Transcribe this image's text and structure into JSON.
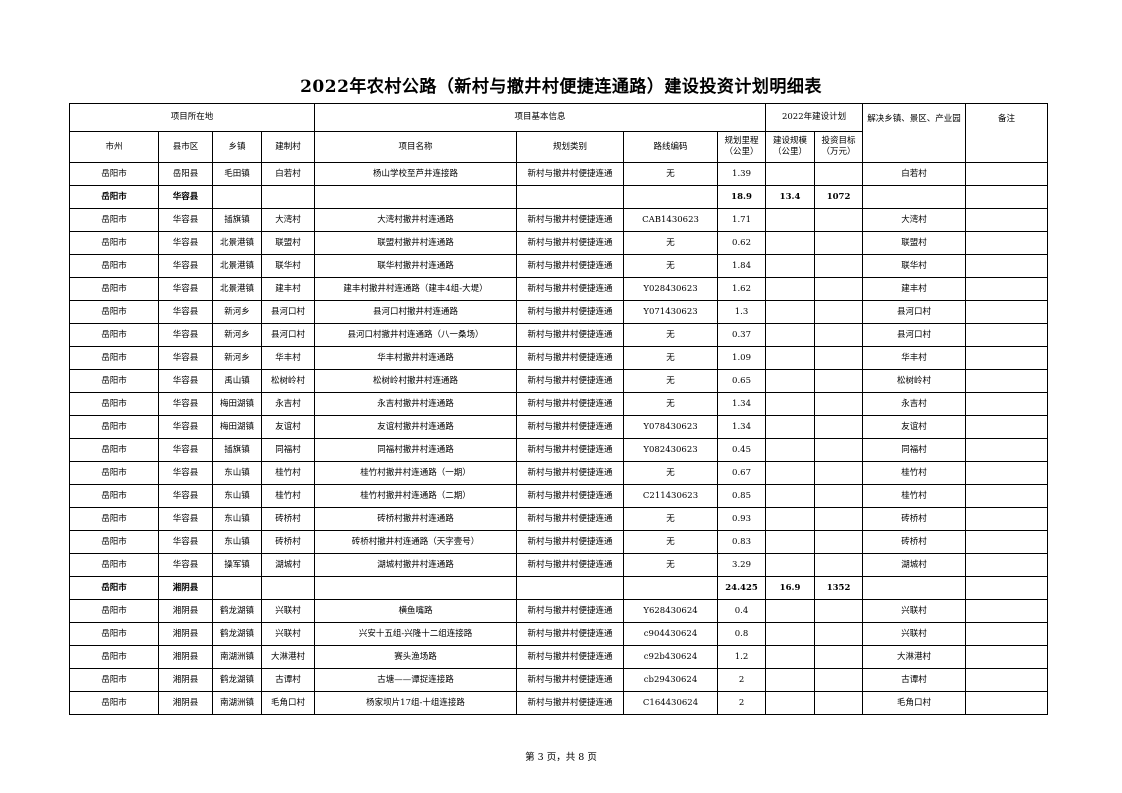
{
  "title": "2022年农村公路（新村与撤井村便捷连通路）建设投资计划明细表",
  "header": {
    "group_location": "项目所在地",
    "group_basic": "项目基本信息",
    "group_plan": "2022年建设计划",
    "resolve": "解决乡镇、景区、产业园",
    "remark": "备注",
    "columns": [
      "市州",
      "县市区",
      "乡镇",
      "建制村",
      "项目名称",
      "规划类别",
      "路线编码",
      "规划里程（公里）",
      "建设规模（公里）",
      "投资目标（万元）"
    ]
  },
  "rows": [
    {
      "type": "item",
      "c": [
        "岳阳市",
        "岳阳县",
        "毛田镇",
        "白若村",
        "杨山学校至芦井连接路",
        "新村与撤井村便捷连通",
        "无",
        "1.39",
        "",
        "",
        "白若村",
        ""
      ]
    },
    {
      "type": "subtotal",
      "c": [
        "岳阳市",
        "华容县",
        "",
        "",
        "",
        "",
        "",
        "18.9",
        "13.4",
        "1072",
        "",
        ""
      ]
    },
    {
      "type": "item",
      "c": [
        "岳阳市",
        "华容县",
        "插旗镇",
        "大湾村",
        "大湾村撤井村连通路",
        "新村与撤井村便捷连通",
        "CAB1430623",
        "1.71",
        "",
        "",
        "大湾村",
        ""
      ]
    },
    {
      "type": "item",
      "c": [
        "岳阳市",
        "华容县",
        "北景港镇",
        "联盟村",
        "联盟村撤井村连通路",
        "新村与撤井村便捷连通",
        "无",
        "0.62",
        "",
        "",
        "联盟村",
        ""
      ]
    },
    {
      "type": "item",
      "c": [
        "岳阳市",
        "华容县",
        "北景港镇",
        "联华村",
        "联华村撤井村连通路",
        "新村与撤井村便捷连通",
        "无",
        "1.84",
        "",
        "",
        "联华村",
        ""
      ]
    },
    {
      "type": "item",
      "c": [
        "岳阳市",
        "华容县",
        "北景港镇",
        "建丰村",
        "建丰村撤井村连通路（建丰4组-大堤）",
        "新村与撤井村便捷连通",
        "Y028430623",
        "1.62",
        "",
        "",
        "建丰村",
        ""
      ]
    },
    {
      "type": "item",
      "c": [
        "岳阳市",
        "华容县",
        "新河乡",
        "县河口村",
        "县河口村撤井村连通路",
        "新村与撤井村便捷连通",
        "Y071430623",
        "1.3",
        "",
        "",
        "县河口村",
        ""
      ]
    },
    {
      "type": "item",
      "c": [
        "岳阳市",
        "华容县",
        "新河乡",
        "县河口村",
        "县河口村撤井村连通路（八一桑场）",
        "新村与撤井村便捷连通",
        "无",
        "0.37",
        "",
        "",
        "县河口村",
        ""
      ]
    },
    {
      "type": "item",
      "c": [
        "岳阳市",
        "华容县",
        "新河乡",
        "华丰村",
        "华丰村撤井村连通路",
        "新村与撤井村便捷连通",
        "无",
        "1.09",
        "",
        "",
        "华丰村",
        ""
      ]
    },
    {
      "type": "item",
      "c": [
        "岳阳市",
        "华容县",
        "禹山镇",
        "松树岭村",
        "松树岭村撤井村连通路",
        "新村与撤井村便捷连通",
        "无",
        "0.65",
        "",
        "",
        "松树岭村",
        ""
      ]
    },
    {
      "type": "item",
      "c": [
        "岳阳市",
        "华容县",
        "梅田湖镇",
        "永吉村",
        "永吉村撤井村连通路",
        "新村与撤井村便捷连通",
        "无",
        "1.34",
        "",
        "",
        "永吉村",
        ""
      ]
    },
    {
      "type": "item",
      "c": [
        "岳阳市",
        "华容县",
        "梅田湖镇",
        "友谊村",
        "友谊村撤井村连通路",
        "新村与撤井村便捷连通",
        "Y078430623",
        "1.34",
        "",
        "",
        "友谊村",
        ""
      ]
    },
    {
      "type": "item",
      "c": [
        "岳阳市",
        "华容县",
        "插旗镇",
        "同福村",
        "同福村撤井村连通路",
        "新村与撤井村便捷连通",
        "Y082430623",
        "0.45",
        "",
        "",
        "同福村",
        ""
      ]
    },
    {
      "type": "item",
      "c": [
        "岳阳市",
        "华容县",
        "东山镇",
        "桂竹村",
        "桂竹村撤井村连通路（一期）",
        "新村与撤井村便捷连通",
        "无",
        "0.67",
        "",
        "",
        "桂竹村",
        ""
      ]
    },
    {
      "type": "item",
      "c": [
        "岳阳市",
        "华容县",
        "东山镇",
        "桂竹村",
        "桂竹村撤井村连通路（二期）",
        "新村与撤井村便捷连通",
        "C211430623",
        "0.85",
        "",
        "",
        "桂竹村",
        ""
      ]
    },
    {
      "type": "item",
      "c": [
        "岳阳市",
        "华容县",
        "东山镇",
        "砖桥村",
        "砖桥村撤井村连通路",
        "新村与撤井村便捷连通",
        "无",
        "0.93",
        "",
        "",
        "砖桥村",
        ""
      ]
    },
    {
      "type": "item",
      "c": [
        "岳阳市",
        "华容县",
        "东山镇",
        "砖桥村",
        "砖桥村撤井村连通路（天字壹号）",
        "新村与撤井村便捷连通",
        "无",
        "0.83",
        "",
        "",
        "砖桥村",
        ""
      ]
    },
    {
      "type": "item",
      "c": [
        "岳阳市",
        "华容县",
        "操军镇",
        "湖城村",
        "湖城村撤井村连通路",
        "新村与撤井村便捷连通",
        "无",
        "3.29",
        "",
        "",
        "湖城村",
        ""
      ]
    },
    {
      "type": "subtotal",
      "c": [
        "岳阳市",
        "湘阴县",
        "",
        "",
        "",
        "",
        "",
        "24.425",
        "16.9",
        "1352",
        "",
        ""
      ]
    },
    {
      "type": "item",
      "c": [
        "岳阳市",
        "湘阴县",
        "鹤龙湖镇",
        "兴联村",
        "横鱼嘴路",
        "新村与撤井村便捷连通",
        "Y628430624",
        "0.4",
        "",
        "",
        "兴联村",
        ""
      ]
    },
    {
      "type": "item",
      "c": [
        "岳阳市",
        "湘阴县",
        "鹤龙湖镇",
        "兴联村",
        "兴安十五组-兴隆十二组连接路",
        "新村与撤井村便捷连通",
        "c904430624",
        "0.8",
        "",
        "",
        "兴联村",
        ""
      ]
    },
    {
      "type": "item",
      "c": [
        "岳阳市",
        "湘阴县",
        "南湖洲镇",
        "大淋港村",
        "赛头渔场路",
        "新村与撤井村便捷连通",
        "c92b430624",
        "1.2",
        "",
        "",
        "大淋港村",
        ""
      ]
    },
    {
      "type": "item",
      "c": [
        "岳阳市",
        "湘阴县",
        "鹤龙湖镇",
        "古谭村",
        "古塘——谭捉连接路",
        "新村与撤井村便捷连通",
        "cb29430624",
        "2",
        "",
        "",
        "古谭村",
        ""
      ]
    },
    {
      "type": "item",
      "c": [
        "岳阳市",
        "湘阴县",
        "南湖洲镇",
        "毛角口村",
        "杨家坝片17组-十组连接路",
        "新村与撤井村便捷连通",
        "C164430624",
        "2",
        "",
        "",
        "毛角口村",
        ""
      ]
    }
  ],
  "footer": "第 3 页，共 8 页"
}
